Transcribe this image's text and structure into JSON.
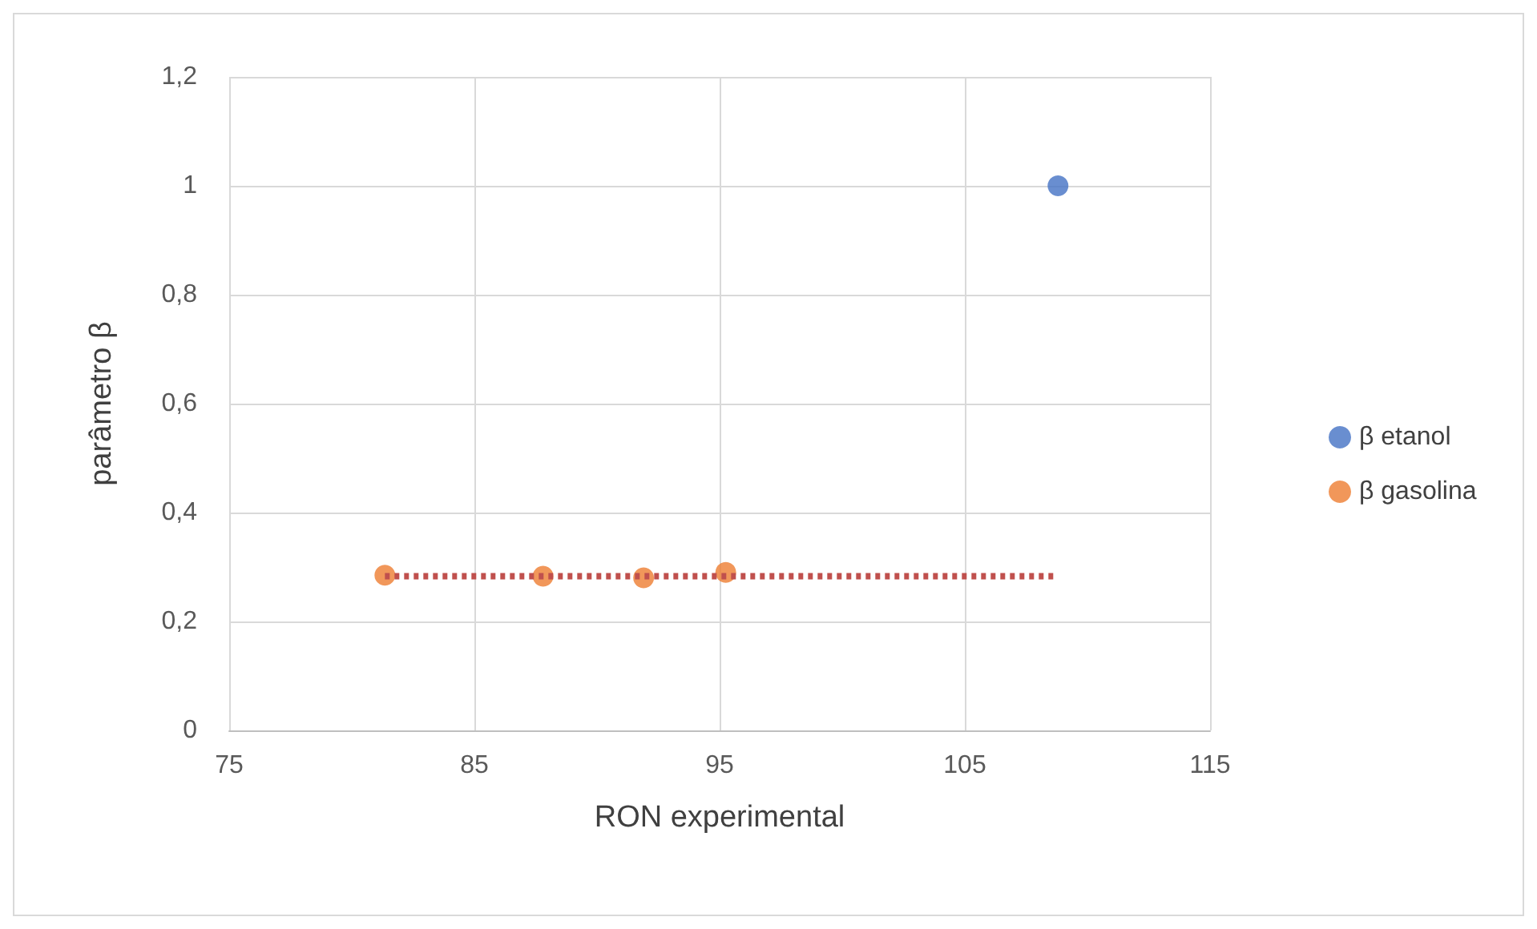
{
  "chart_data": {
    "type": "scatter",
    "xlabel": "RON experimental",
    "ylabel": "parâmetro β",
    "xlim": [
      75,
      115
    ],
    "xticks": [
      75,
      85,
      95,
      105,
      115
    ],
    "ylim": [
      0,
      1.2
    ],
    "yticks": [
      0,
      {
        "value": 0.2,
        "label": "0,2"
      },
      {
        "value": 0.4,
        "label": "0,4"
      },
      {
        "value": 0.6,
        "label": "0,6"
      },
      {
        "value": 0.8,
        "label": "0,8"
      },
      1,
      {
        "value": 1.2,
        "label": "1,2"
      }
    ],
    "grid": true,
    "legend": "right",
    "marker": "circle",
    "series": [
      {
        "name": "β etanol",
        "color": "#4472c4",
        "x": [
          108.8
        ],
        "values": [
          1
        ]
      },
      {
        "name": "β gasolina",
        "color": "#ed7d31",
        "x": [
          81.35,
          87.8,
          91.9,
          95.25
        ],
        "values": [
          0.285,
          0.283,
          0.28,
          0.29
        ]
      },
      {
        "type": "line",
        "color": "#c0504d",
        "line_style": "dotted",
        "marker": "none",
        "x": [
          81.35,
          108.8
        ],
        "values": [
          0.283,
          0.283
        ]
      }
    ]
  }
}
